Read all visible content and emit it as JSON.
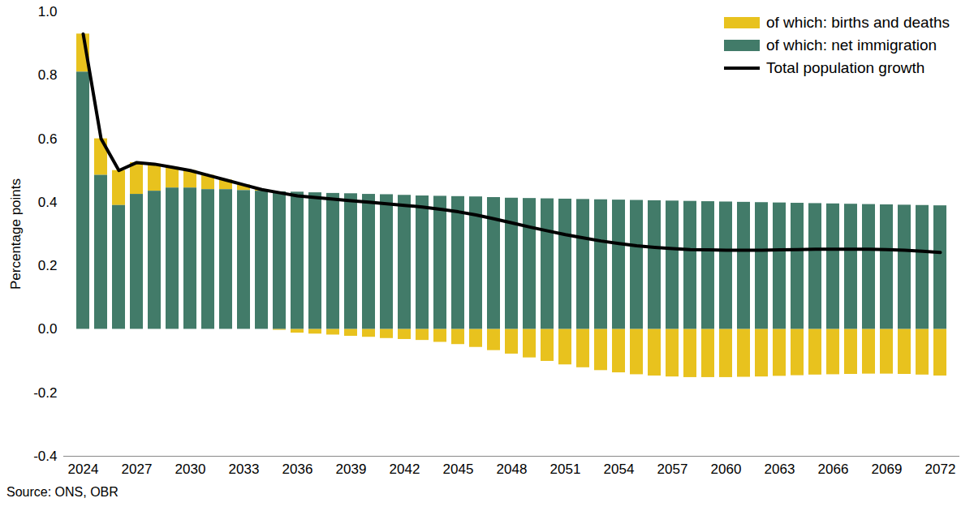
{
  "chart_data": {
    "type": "bar",
    "stacked": true,
    "x": [
      2024,
      2025,
      2026,
      2027,
      2028,
      2029,
      2030,
      2031,
      2032,
      2033,
      2034,
      2035,
      2036,
      2037,
      2038,
      2039,
      2040,
      2041,
      2042,
      2043,
      2044,
      2045,
      2046,
      2047,
      2048,
      2049,
      2050,
      2051,
      2052,
      2053,
      2054,
      2055,
      2056,
      2057,
      2058,
      2059,
      2060,
      2061,
      2062,
      2063,
      2064,
      2065,
      2066,
      2067,
      2068,
      2069,
      2070,
      2071,
      2072
    ],
    "xticks": [
      2024,
      2027,
      2030,
      2033,
      2036,
      2039,
      2042,
      2045,
      2048,
      2051,
      2054,
      2057,
      2060,
      2063,
      2066,
      2069,
      2072
    ],
    "ylim": [
      -0.4,
      1.0
    ],
    "yticks": [
      -0.4,
      -0.2,
      {
        "value": 0,
        "label": "0.0"
      },
      0.2,
      0.4,
      0.6,
      0.8,
      {
        "value": 1,
        "label": "1.0"
      }
    ],
    "y_label": "Percentage points",
    "grid": false,
    "legend": "top-right",
    "annotations": [
      "Source: ONS, OBR"
    ],
    "series": [
      {
        "name": "of which: births and deaths",
        "type": "bar",
        "color": "#e8c21e",
        "values": [
          0.12,
          0.115,
          0.11,
          0.1,
          0.085,
          0.065,
          0.055,
          0.045,
          0.03,
          0.018,
          0.005,
          -0.003,
          -0.012,
          -0.015,
          -0.018,
          -0.022,
          -0.025,
          -0.029,
          -0.032,
          -0.035,
          -0.041,
          -0.048,
          -0.057,
          -0.067,
          -0.078,
          -0.09,
          -0.101,
          -0.112,
          -0.121,
          -0.13,
          -0.137,
          -0.143,
          -0.147,
          -0.15,
          -0.152,
          -0.152,
          -0.152,
          -0.151,
          -0.15,
          -0.148,
          -0.146,
          -0.144,
          -0.143,
          -0.142,
          -0.141,
          -0.141,
          -0.142,
          -0.144,
          -0.147
        ]
      },
      {
        "name": "of which: net immigration",
        "type": "bar",
        "color": "#427b69",
        "values": [
          0.81,
          0.485,
          0.39,
          0.425,
          0.435,
          0.445,
          0.445,
          0.44,
          0.44,
          0.437,
          0.435,
          0.433,
          0.432,
          0.43,
          0.428,
          0.427,
          0.425,
          0.424,
          0.422,
          0.42,
          0.419,
          0.418,
          0.417,
          0.415,
          0.413,
          0.412,
          0.411,
          0.41,
          0.409,
          0.408,
          0.407,
          0.406,
          0.405,
          0.404,
          0.403,
          0.402,
          0.401,
          0.4,
          0.399,
          0.398,
          0.397,
          0.396,
          0.395,
          0.394,
          0.393,
          0.392,
          0.391,
          0.39,
          0.389
        ]
      },
      {
        "name": "Total population growth",
        "type": "line",
        "color": "#000000",
        "values": [
          0.93,
          0.6,
          0.5,
          0.525,
          0.52,
          0.51,
          0.5,
          0.485,
          0.47,
          0.455,
          0.44,
          0.43,
          0.42,
          0.415,
          0.41,
          0.405,
          0.4,
          0.395,
          0.39,
          0.385,
          0.378,
          0.37,
          0.36,
          0.348,
          0.335,
          0.322,
          0.31,
          0.298,
          0.288,
          0.278,
          0.27,
          0.263,
          0.258,
          0.254,
          0.251,
          0.25,
          0.249,
          0.249,
          0.249,
          0.25,
          0.251,
          0.252,
          0.252,
          0.252,
          0.252,
          0.251,
          0.249,
          0.246,
          0.242
        ]
      }
    ]
  }
}
